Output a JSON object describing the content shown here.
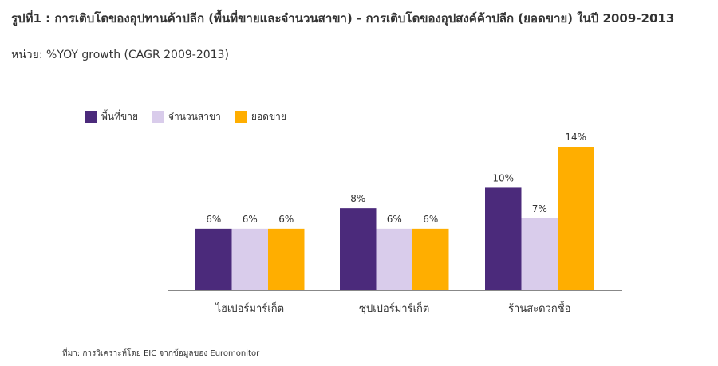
{
  "header": {
    "title": "รูปที่1 : การเติบโตของอุปทานค้าปลีก (พื้นที่ขายและจำนวนสาขา) - การเติบโตของอุปสงค์ค้าปลีก (ยอดขาย) ในปี 2009-2013",
    "subtitle": "หน่วย: %YOY growth (CAGR 2009-2013)"
  },
  "chart_data": {
    "type": "bar",
    "categories": [
      "ไฮเปอร์มาร์เก็ต",
      "ซุปเปอร์มาร์เก็ต",
      "ร้านสะดวกซื้อ"
    ],
    "series": [
      {
        "name": "พื้นที่ขาย",
        "values": [
          6,
          8,
          10
        ],
        "labels": [
          "6%",
          "8%",
          "10%"
        ],
        "color": "#4b2a7b"
      },
      {
        "name": "จำนวนสาขา",
        "values": [
          6,
          6,
          7
        ],
        "labels": [
          "6%",
          "6%",
          "7%"
        ],
        "color": "#d9cceb"
      },
      {
        "name": "ยอดขาย",
        "values": [
          6,
          6,
          14
        ],
        "labels": [
          "6%",
          "6%",
          "14%"
        ],
        "color": "#ffae00"
      }
    ],
    "ylim": [
      0,
      14
    ],
    "grid": false,
    "legend": "top-left"
  },
  "footer": {
    "source": "ที่มา: การวิเคราะห์โดย EIC จากข้อมูลของ Euromonitor"
  }
}
